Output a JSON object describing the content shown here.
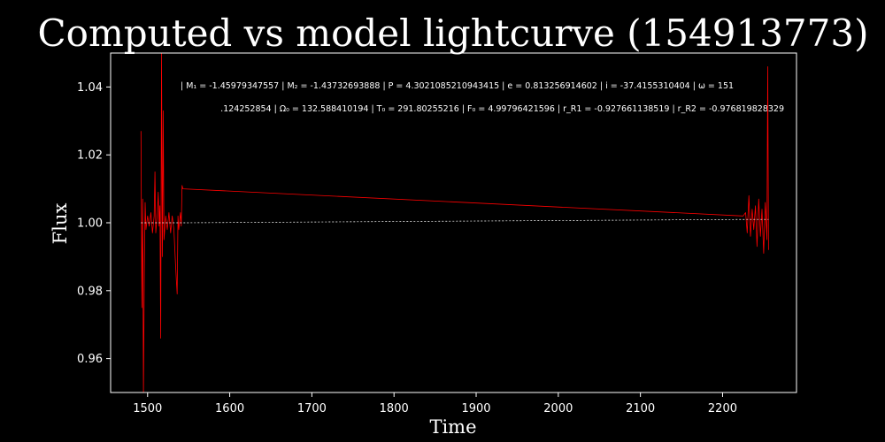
{
  "chart_data": {
    "type": "line",
    "title": "Computed vs model lightcurve (154913773)",
    "xlabel": "Time",
    "ylabel": "Flux",
    "xlim": [
      1455,
      2290
    ],
    "ylim": [
      0.95,
      1.05
    ],
    "x_ticks": [
      1500,
      1600,
      1700,
      1800,
      1900,
      2000,
      2100,
      2200
    ],
    "y_ticks": [
      0.96,
      0.98,
      1.0,
      1.02,
      1.04
    ],
    "y_tick_labels": [
      "0.96",
      "0.98",
      "1.00",
      "1.02",
      "1.04"
    ],
    "grid": false,
    "background": "#000000",
    "colors": {
      "observed": "#ff0000",
      "model": "#ffffff",
      "axes": "#ffffff"
    },
    "annotation_lines": [
      "| M₁ = -1.45979347557 | M₂ = -1.43732693888 | P = 4.3021085210943415 | e = 0.813256914602 | i = -37.4155310404 | ω = 151",
      ".124252854 | Ω₀ = 132.588410194 | T₀ = 291.80255216 | F₀ = 4.99796421596 | r_R1 = -0.927661138519 | r_R2 = -0.976819828329"
    ],
    "series": [
      {
        "style": "solid",
        "color": "#ff0000",
        "x": [
          1492,
          1493,
          1494,
          1495,
          1496,
          1497,
          1498,
          1500,
          1502,
          1504,
          1506,
          1508,
          1509,
          1510,
          1512,
          1513,
          1514,
          1515,
          1516,
          1517,
          1518,
          1519,
          1520,
          1522,
          1524,
          1526,
          1528,
          1530,
          1532,
          1534,
          1535,
          1536,
          1537,
          1538,
          1540,
          1541,
          1542,
          1543,
          2225,
          2228,
          2230,
          2232,
          2234,
          2236,
          2238,
          2240,
          2242,
          2244,
          2246,
          2248,
          2250,
          2252,
          2254,
          2255,
          2256
        ],
        "y": [
          1.027,
          0.975,
          1.007,
          0.95,
          0.986,
          1.006,
          0.998,
          1.002,
          0.999,
          1.003,
          0.997,
          1.002,
          1.015,
          0.997,
          1.003,
          1.009,
          0.999,
          1.005,
          0.966,
          1.05,
          0.99,
          1.033,
          0.995,
          1.002,
          0.998,
          1.003,
          0.997,
          1.002,
          0.998,
          0.988,
          0.983,
          0.979,
          1.002,
          0.998,
          1.003,
          0.999,
          1.011,
          1.01,
          1.002,
          1.003,
          0.997,
          1.008,
          0.996,
          1.004,
          0.998,
          1.005,
          0.993,
          1.007,
          0.996,
          1.004,
          0.991,
          1.006,
          0.995,
          1.046,
          0.992
        ]
      },
      {
        "style": "dashed",
        "color": "#ffffff",
        "x": [
          1492,
          1545,
          2230,
          2256
        ],
        "y": [
          1.0,
          1.0,
          1.001,
          1.001
        ]
      }
    ]
  }
}
